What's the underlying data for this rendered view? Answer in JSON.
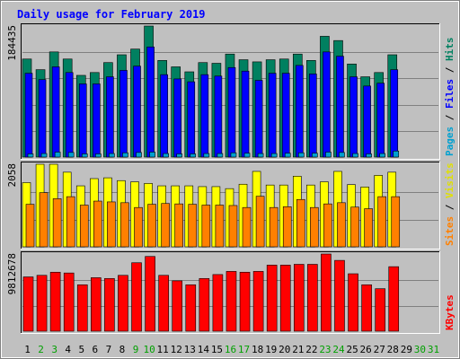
{
  "chart_data": {
    "type": "bar",
    "title": "Daily usage for February 2019",
    "categories": [
      "1",
      "2",
      "3",
      "4",
      "5",
      "6",
      "7",
      "8",
      "9",
      "10",
      "11",
      "12",
      "13",
      "14",
      "15",
      "16",
      "17",
      "18",
      "19",
      "20",
      "21",
      "22",
      "23",
      "24",
      "25",
      "26",
      "27",
      "28",
      "29",
      "30",
      "31"
    ],
    "weekend_days": [
      "2",
      "3",
      "9",
      "10",
      "16",
      "17",
      "23",
      "24",
      "30",
      "31"
    ],
    "panels": [
      {
        "name": "requests",
        "max_label": "184435",
        "ylim": [
          0,
          184435
        ],
        "ylabel_parts": [
          {
            "text": "Pages",
            "color": "#00a0d0"
          },
          {
            "text": " / ",
            "color": "#000000"
          },
          {
            "text": "Files",
            "color": "#0000ff"
          },
          {
            "text": " / ",
            "color": "#000000"
          },
          {
            "text": "Hits",
            "color": "#008060"
          }
        ],
        "series": [
          {
            "name": "Hits",
            "color": "#008060",
            "values": [
              138000,
              123000,
              148000,
              138000,
              115000,
              119000,
              133000,
              144000,
              152000,
              184435,
              136000,
              127000,
              120000,
              133000,
              132000,
              145000,
              137000,
              134000,
              137000,
              138000,
              145000,
              136000,
              170000,
              164000,
              131000,
              113000,
              119000,
              144000,
              null,
              null,
              null
            ]
          },
          {
            "name": "Files",
            "color": "#0000ff",
            "values": [
              118000,
              109000,
              127000,
              119000,
              103000,
              103000,
              113000,
              122000,
              128000,
              155000,
              116000,
              110000,
              106000,
              116000,
              114000,
              126000,
              121000,
              108000,
              118000,
              118000,
              129000,
              117000,
              148000,
              142000,
              113000,
              100000,
              104000,
              123000,
              null,
              null,
              null
            ]
          },
          {
            "name": "Pages",
            "color": "#00a0d0",
            "values": [
              4500,
              5000,
              7000,
              6500,
              4500,
              4500,
              5000,
              6000,
              6500,
              7000,
              5000,
              4500,
              4500,
              5000,
              5000,
              6000,
              5500,
              5000,
              5000,
              5500,
              6000,
              5500,
              7000,
              6500,
              5000,
              4500,
              5000,
              8500,
              null,
              null,
              null
            ]
          }
        ]
      },
      {
        "name": "visits",
        "max_label": "2058",
        "ylim": [
          0,
          2058
        ],
        "ylabel_parts": [
          {
            "text": "Sites",
            "color": "#ff8000"
          },
          {
            "text": " / ",
            "color": "#000000"
          },
          {
            "text": "Visits",
            "color": "#e0e000"
          }
        ],
        "series": [
          {
            "name": "Visits",
            "color": "#ffff00",
            "values": [
              1600,
              2058,
              2058,
              1860,
              1520,
              1700,
              1720,
              1650,
              1620,
              1580,
              1520,
              1520,
              1520,
              1500,
              1500,
              1450,
              1560,
              1880,
              1540,
              1540,
              1760,
              1540,
              1620,
              1880,
              1550,
              1490,
              1780,
              1860,
              null,
              null,
              null
            ]
          },
          {
            "name": "Sites",
            "color": "#ff8000",
            "values": [
              1060,
              1350,
              1200,
              1250,
              1040,
              1140,
              1120,
              1100,
              980,
              1060,
              1080,
              1070,
              1060,
              1040,
              1040,
              1030,
              980,
              1260,
              980,
              1000,
              1180,
              980,
              1070,
              1100,
              990,
              950,
              1250,
              1250,
              null,
              null,
              null
            ]
          }
        ]
      },
      {
        "name": "volume",
        "max_label": "9812678",
        "ylim": [
          0,
          9812678
        ],
        "ylabel_parts": [
          {
            "text": "KBytes",
            "color": "#ff0000"
          }
        ],
        "series": [
          {
            "name": "KBytes",
            "color": "#ff0000",
            "values": [
              6900000,
              7100000,
              7500000,
              7400000,
              5900000,
              6800000,
              6700000,
              7100000,
              8700000,
              9500000,
              7100000,
              6400000,
              5900000,
              6700000,
              7200000,
              7600000,
              7500000,
              7600000,
              8400000,
              8400000,
              8500000,
              8500000,
              9812678,
              9000000,
              7300000,
              5900000,
              5400000,
              8200000,
              null,
              null,
              null
            ]
          }
        ]
      }
    ]
  }
}
